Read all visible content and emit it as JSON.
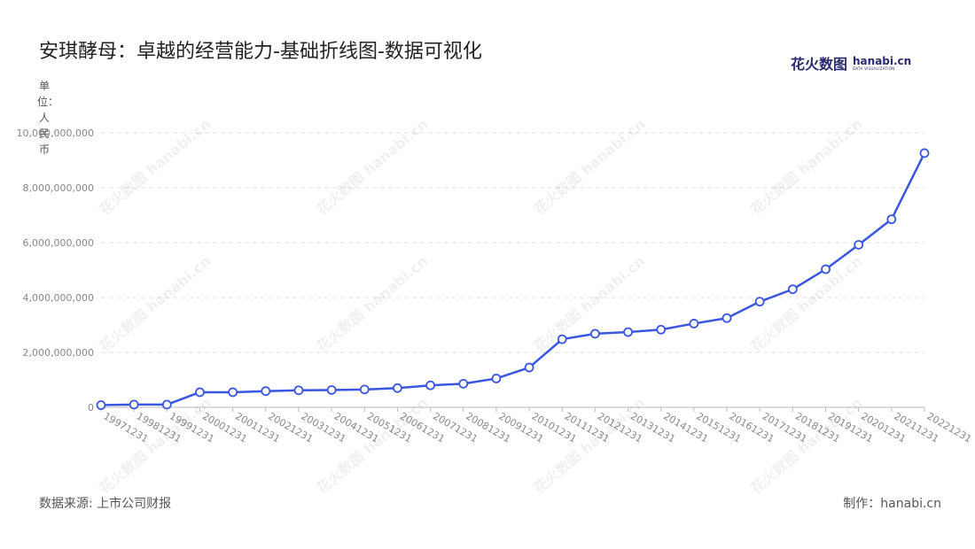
{
  "title": "安琪酵母：卓越的经营能力-基础折线图-数据可视化",
  "brand": {
    "cn": "花火数图",
    "en": "hanabi.cn",
    "sub": "DATA VISUALIZATION"
  },
  "unit_label": "单位：人民币",
  "source": "数据来源: 上市公司财报",
  "credit": "制作：hanabi.cn",
  "watermark": "花火数图 hanabi.cn",
  "colors": {
    "line": "#3b56e0",
    "grid": "#e2e2e2",
    "axis": "#888888",
    "tick_text": "#888888"
  },
  "chart_data": {
    "type": "line",
    "title": "安琪酵母：卓越的经营能力-基础折线图-数据可视化",
    "xlabel": "",
    "ylabel": "单位：人民币",
    "categories": [
      "19971231",
      "19981231",
      "19991231",
      "20001231",
      "20011231",
      "20021231",
      "20031231",
      "20041231",
      "20051231",
      "20061231",
      "20071231",
      "20081231",
      "20091231",
      "20101231",
      "20111231",
      "20121231",
      "20131231",
      "20141231",
      "20151231",
      "20161231",
      "20171231",
      "20181231",
      "20191231",
      "20201231",
      "20211231",
      "20221231"
    ],
    "series": [
      {
        "values": [
          80000000,
          100000000,
          100000000,
          550000000,
          550000000,
          590000000,
          620000000,
          630000000,
          650000000,
          700000000,
          800000000,
          860000000,
          1050000000,
          1450000000,
          2480000000,
          2680000000,
          2740000000,
          2830000000,
          3050000000,
          3250000000,
          3850000000,
          4300000000,
          5030000000,
          5920000000,
          6850000000,
          9260000000
        ]
      }
    ],
    "ylim": [
      0,
      10000000000
    ],
    "yticks": [
      0,
      2000000000,
      4000000000,
      6000000000,
      8000000000,
      10000000000
    ],
    "ytick_labels": [
      "0",
      "2,000,000,000",
      "4,000,000,000",
      "6,000,000,000",
      "8,000,000,000",
      "10,000,000,000"
    ],
    "grid": true,
    "legend": "none"
  }
}
